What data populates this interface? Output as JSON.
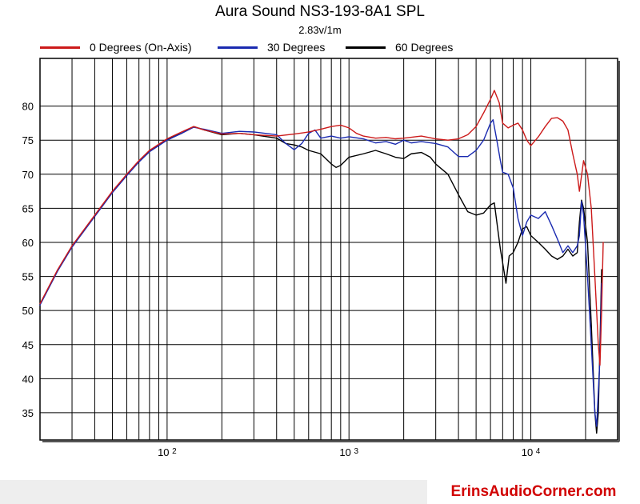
{
  "chart_data": {
    "type": "line",
    "title": "Aura Sound NS3-193-8A1 SPL",
    "subtitle": "2.83v/1m",
    "x_scale": "log",
    "xlim": [
      20,
      30000
    ],
    "ylim": [
      31,
      87
    ],
    "x_ticks": [
      {
        "value": 100,
        "base": "10",
        "exp": "2"
      },
      {
        "value": 1000,
        "base": "10",
        "exp": "3"
      },
      {
        "value": 10000,
        "base": "10",
        "exp": "4"
      }
    ],
    "y_ticks": [
      35,
      40,
      45,
      50,
      55,
      60,
      65,
      70,
      75,
      80
    ],
    "grid": true,
    "legend_position": "top",
    "series": [
      {
        "name": "0 Degrees (On-Axis)",
        "color": "#cc1a1a",
        "points": [
          [
            20,
            51
          ],
          [
            25,
            56
          ],
          [
            30,
            59.5
          ],
          [
            40,
            64
          ],
          [
            50,
            67.5
          ],
          [
            60,
            70
          ],
          [
            70,
            72
          ],
          [
            80,
            73.5
          ],
          [
            100,
            75.2
          ],
          [
            120,
            76.2
          ],
          [
            140,
            77
          ],
          [
            160,
            76.5
          ],
          [
            200,
            75.9
          ],
          [
            250,
            76
          ],
          [
            300,
            75.8
          ],
          [
            400,
            75.6
          ],
          [
            500,
            75.9
          ],
          [
            600,
            76.2
          ],
          [
            700,
            76.6
          ],
          [
            800,
            77
          ],
          [
            900,
            77.2
          ],
          [
            1000,
            76.8
          ],
          [
            1100,
            76
          ],
          [
            1200,
            75.6
          ],
          [
            1400,
            75.3
          ],
          [
            1600,
            75.4
          ],
          [
            1800,
            75.2
          ],
          [
            2000,
            75.3
          ],
          [
            2500,
            75.6
          ],
          [
            3000,
            75.2
          ],
          [
            3500,
            75
          ],
          [
            4000,
            75.2
          ],
          [
            4500,
            75.8
          ],
          [
            5000,
            77
          ],
          [
            5500,
            79
          ],
          [
            6000,
            81
          ],
          [
            6300,
            82.3
          ],
          [
            6700,
            80.5
          ],
          [
            7000,
            77.5
          ],
          [
            7500,
            76.8
          ],
          [
            8000,
            77.2
          ],
          [
            8500,
            77.5
          ],
          [
            9000,
            76.5
          ],
          [
            9500,
            75
          ],
          [
            10000,
            74.2
          ],
          [
            11000,
            75.5
          ],
          [
            12000,
            77
          ],
          [
            13000,
            78.2
          ],
          [
            14000,
            78.3
          ],
          [
            15000,
            77.8
          ],
          [
            16000,
            76.5
          ],
          [
            17000,
            73
          ],
          [
            18000,
            70
          ],
          [
            18500,
            67.5
          ],
          [
            19500,
            72
          ],
          [
            20500,
            70
          ],
          [
            21500,
            65
          ],
          [
            22500,
            55
          ],
          [
            23500,
            45
          ],
          [
            24000,
            42
          ],
          [
            24500,
            50
          ],
          [
            25000,
            60
          ]
        ]
      },
      {
        "name": "30 Degrees",
        "color": "#1a2ab0",
        "points": [
          [
            20,
            50.8
          ],
          [
            25,
            55.8
          ],
          [
            30,
            59.3
          ],
          [
            40,
            63.8
          ],
          [
            50,
            67.3
          ],
          [
            60,
            69.8
          ],
          [
            70,
            71.8
          ],
          [
            80,
            73.3
          ],
          [
            100,
            75
          ],
          [
            120,
            76
          ],
          [
            140,
            76.9
          ],
          [
            160,
            76.6
          ],
          [
            200,
            76
          ],
          [
            250,
            76.3
          ],
          [
            300,
            76.2
          ],
          [
            400,
            75.8
          ],
          [
            450,
            74.5
          ],
          [
            500,
            73.6
          ],
          [
            550,
            74.5
          ],
          [
            600,
            76
          ],
          [
            650,
            76.5
          ],
          [
            700,
            75.3
          ],
          [
            800,
            75.6
          ],
          [
            900,
            75.3
          ],
          [
            1000,
            75.5
          ],
          [
            1200,
            75.2
          ],
          [
            1400,
            74.6
          ],
          [
            1600,
            74.8
          ],
          [
            1800,
            74.4
          ],
          [
            2000,
            75
          ],
          [
            2200,
            74.6
          ],
          [
            2500,
            74.8
          ],
          [
            3000,
            74.5
          ],
          [
            3500,
            74
          ],
          [
            4000,
            72.6
          ],
          [
            4500,
            72.6
          ],
          [
            5000,
            73.5
          ],
          [
            5500,
            75
          ],
          [
            6000,
            77.5
          ],
          [
            6200,
            78
          ],
          [
            6500,
            75
          ],
          [
            6800,
            72
          ],
          [
            7000,
            70.3
          ],
          [
            7500,
            70
          ],
          [
            8000,
            68
          ],
          [
            8500,
            63.5
          ],
          [
            9000,
            61
          ],
          [
            9500,
            63
          ],
          [
            10000,
            64
          ],
          [
            11000,
            63.5
          ],
          [
            12000,
            64.5
          ],
          [
            13000,
            62.5
          ],
          [
            14000,
            60.5
          ],
          [
            15000,
            58.5
          ],
          [
            16000,
            59.5
          ],
          [
            17000,
            58.5
          ],
          [
            18000,
            59.5
          ],
          [
            18500,
            61
          ],
          [
            19000,
            66
          ],
          [
            19500,
            64
          ],
          [
            20500,
            55
          ],
          [
            21500,
            45
          ],
          [
            22500,
            35
          ],
          [
            23000,
            33
          ],
          [
            24000,
            43
          ],
          [
            24500,
            54
          ]
        ]
      },
      {
        "name": "60 Degrees",
        "color": "#000000",
        "points": [
          [
            20,
            50.9
          ],
          [
            25,
            55.9
          ],
          [
            30,
            59.4
          ],
          [
            40,
            63.9
          ],
          [
            50,
            67.4
          ],
          [
            60,
            69.9
          ],
          [
            70,
            71.9
          ],
          [
            80,
            73.4
          ],
          [
            100,
            75.1
          ],
          [
            120,
            76
          ],
          [
            140,
            77
          ],
          [
            160,
            76.5
          ],
          [
            200,
            75.8
          ],
          [
            250,
            76
          ],
          [
            300,
            75.8
          ],
          [
            400,
            75.3
          ],
          [
            450,
            74.5
          ],
          [
            500,
            74.3
          ],
          [
            550,
            74
          ],
          [
            600,
            73.5
          ],
          [
            700,
            73
          ],
          [
            800,
            71.5
          ],
          [
            850,
            71
          ],
          [
            900,
            71.3
          ],
          [
            1000,
            72.5
          ],
          [
            1200,
            73
          ],
          [
            1400,
            73.5
          ],
          [
            1600,
            73
          ],
          [
            1800,
            72.5
          ],
          [
            2000,
            72.3
          ],
          [
            2200,
            73
          ],
          [
            2500,
            73.2
          ],
          [
            2800,
            72.5
          ],
          [
            3000,
            71.5
          ],
          [
            3500,
            70
          ],
          [
            4000,
            67
          ],
          [
            4500,
            64.5
          ],
          [
            5000,
            64
          ],
          [
            5500,
            64.3
          ],
          [
            6000,
            65.5
          ],
          [
            6300,
            65.8
          ],
          [
            6800,
            59
          ],
          [
            7000,
            57
          ],
          [
            7300,
            54
          ],
          [
            7600,
            58
          ],
          [
            8000,
            58.5
          ],
          [
            8500,
            60
          ],
          [
            9000,
            62
          ],
          [
            9500,
            62.3
          ],
          [
            10000,
            61
          ],
          [
            11000,
            60
          ],
          [
            12000,
            59
          ],
          [
            13000,
            58
          ],
          [
            14000,
            57.5
          ],
          [
            15000,
            58
          ],
          [
            16000,
            59
          ],
          [
            17000,
            58
          ],
          [
            18000,
            58.5
          ],
          [
            18500,
            63
          ],
          [
            19000,
            66.2
          ],
          [
            19500,
            65
          ],
          [
            20500,
            60
          ],
          [
            21500,
            48
          ],
          [
            22500,
            35
          ],
          [
            23000,
            32
          ],
          [
            23500,
            35
          ],
          [
            24000,
            45
          ],
          [
            24500,
            56
          ]
        ]
      }
    ]
  },
  "watermark": "ErinsAudioCorner.com"
}
